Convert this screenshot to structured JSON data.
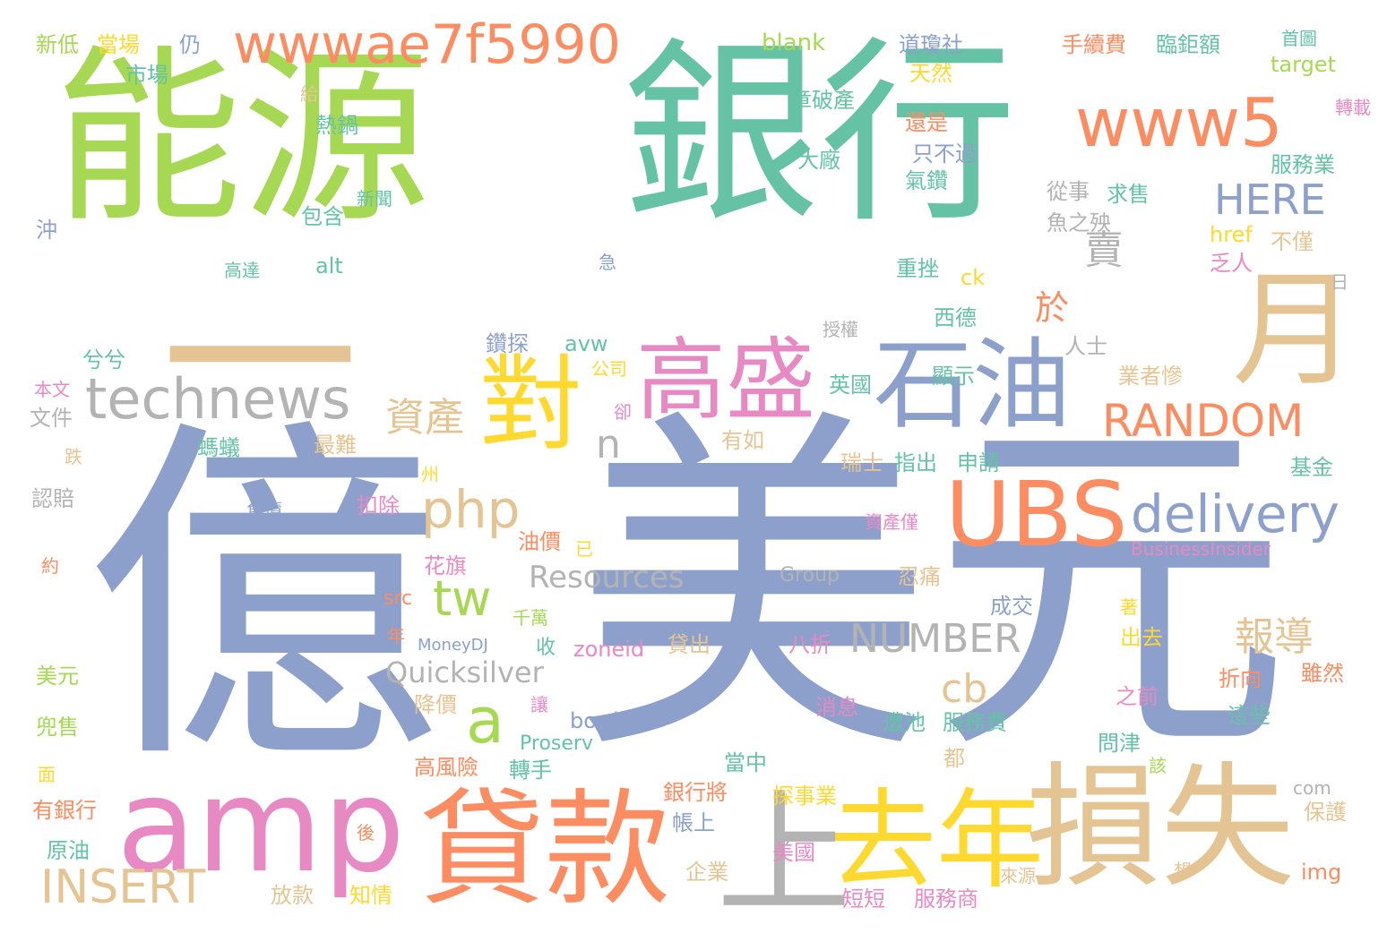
{
  "palette": [
    "#a6d854",
    "#66c2a5",
    "#8da0cb",
    "#fc8d62",
    "#e5c494",
    "#ffd92f",
    "#e78ac3",
    "#b3b3b3"
  ],
  "words": [
    {
      "text": "能源",
      "color": "#a6d854",
      "weight": 1.0
    },
    {
      "text": "銀行",
      "color": "#66c2a5",
      "weight": 1.0
    },
    {
      "text": "億",
      "color": "#8da0cb",
      "weight": 1.0
    },
    {
      "text": "美元",
      "color": "#8da0cb",
      "weight": 1.0
    },
    {
      "text": "一",
      "color": "#e5c494",
      "weight": 0.8
    },
    {
      "text": "月",
      "color": "#e5c494",
      "weight": 0.6
    },
    {
      "text": "石油",
      "color": "#8da0cb",
      "weight": 0.55
    },
    {
      "text": "損失",
      "color": "#e5c494",
      "weight": 0.6
    },
    {
      "text": "貸款",
      "color": "#fc8d62",
      "weight": 0.55
    },
    {
      "text": "去年",
      "color": "#ffd92f",
      "weight": 0.5
    },
    {
      "text": "上",
      "color": "#b3b3b3",
      "weight": 0.55
    },
    {
      "text": "amp",
      "color": "#e78ac3",
      "weight": 0.55
    },
    {
      "text": "對",
      "color": "#ffd92f",
      "weight": 0.5
    },
    {
      "text": "高盛",
      "color": "#e78ac3",
      "weight": 0.45
    },
    {
      "text": "UBS",
      "color": "#fc8d62",
      "weight": 0.45
    },
    {
      "text": "www5",
      "color": "#fc8d62",
      "weight": 0.38
    },
    {
      "text": "wwwae7f5990",
      "color": "#fc8d62",
      "weight": 0.3
    },
    {
      "text": "technews",
      "color": "#b3b3b3",
      "weight": 0.3
    },
    {
      "text": "delivery",
      "color": "#8da0cb",
      "weight": 0.3
    },
    {
      "text": "RANDOM",
      "color": "#fc8d62",
      "weight": 0.25
    },
    {
      "text": "INSERT",
      "color": "#e5c494",
      "weight": 0.25
    },
    {
      "text": "php",
      "color": "#e5c494",
      "weight": 0.25
    },
    {
      "text": "HERE",
      "color": "#8da0cb",
      "weight": 0.2
    },
    {
      "text": "NUMBER",
      "color": "#b3b3b3",
      "weight": 0.22
    },
    {
      "text": "tw",
      "color": "#a6d854",
      "weight": 0.25
    },
    {
      "text": "a",
      "color": "#a6d854",
      "weight": 0.3
    },
    {
      "text": "n",
      "color": "#b3b3b3",
      "weight": 0.2
    },
    {
      "text": "cb",
      "color": "#e5c494",
      "weight": 0.2
    },
    {
      "text": "資產",
      "color": "#e5c494",
      "weight": 0.22
    },
    {
      "text": "報導",
      "color": "#e5c494",
      "weight": 0.22
    },
    {
      "text": "賣",
      "color": "#b3b3b3",
      "weight": 0.2
    },
    {
      "text": "於",
      "color": "#fc8d62",
      "weight": 0.18
    },
    {
      "text": "Resources",
      "color": "#b3b3b3",
      "weight": 0.16
    },
    {
      "text": "Quicksilver",
      "color": "#b3b3b3",
      "weight": 0.15
    },
    {
      "text": "新低",
      "color": "#a6d854",
      "weight": 0.1
    },
    {
      "text": "當場",
      "color": "#ffd92f",
      "weight": 0.1
    },
    {
      "text": "仍",
      "color": "#8da0cb",
      "weight": 0.1
    },
    {
      "text": "市場",
      "color": "#66c2a5",
      "weight": 0.1
    },
    {
      "text": "blank",
      "color": "#a6d854",
      "weight": 0.1
    },
    {
      "text": "道瓊社",
      "color": "#8da0cb",
      "weight": 0.1
    },
    {
      "text": "手續費",
      "color": "#fc8d62",
      "weight": 0.1
    },
    {
      "text": "臨鉅額",
      "color": "#66c2a5",
      "weight": 0.1
    },
    {
      "text": "首圖",
      "color": "#66c2a5",
      "weight": 0.08
    },
    {
      "text": "target",
      "color": "#a6d854",
      "weight": 0.1
    },
    {
      "text": "天然",
      "color": "#ffd92f",
      "weight": 0.1
    },
    {
      "text": "給",
      "color": "#e5c494",
      "weight": 0.08
    },
    {
      "text": "章破產",
      "color": "#66c2a5",
      "weight": 0.1
    },
    {
      "text": "熱鍋",
      "color": "#66c2a5",
      "weight": 0.1
    },
    {
      "text": "還是",
      "color": "#fc8d62",
      "weight": 0.1
    },
    {
      "text": "轉載",
      "color": "#e78ac3",
      "weight": 0.08
    },
    {
      "text": "大廠",
      "color": "#66c2a5",
      "weight": 0.1
    },
    {
      "text": "只不過",
      "color": "#8da0cb",
      "weight": 0.1
    },
    {
      "text": "氣鑽",
      "color": "#66c2a5",
      "weight": 0.1
    },
    {
      "text": "服務業",
      "color": "#66c2a5",
      "weight": 0.1
    },
    {
      "text": "新聞",
      "color": "#66c2a5",
      "weight": 0.08
    },
    {
      "text": "從事",
      "color": "#b3b3b3",
      "weight": 0.1
    },
    {
      "text": "求售",
      "color": "#66c2a5",
      "weight": 0.1
    },
    {
      "text": "包含",
      "color": "#66c2a5",
      "weight": 0.1
    },
    {
      "text": "沖",
      "color": "#8da0cb",
      "weight": 0.1
    },
    {
      "text": "魚之殃",
      "color": "#b3b3b3",
      "weight": 0.1
    },
    {
      "text": "href",
      "color": "#ffd92f",
      "weight": 0.1
    },
    {
      "text": "不僅",
      "color": "#e5c494",
      "weight": 0.1
    },
    {
      "text": "高達",
      "color": "#66c2a5",
      "weight": 0.08
    },
    {
      "text": "alt",
      "color": "#66c2a5",
      "weight": 0.1
    },
    {
      "text": "急",
      "color": "#8da0cb",
      "weight": 0.08
    },
    {
      "text": "重挫",
      "color": "#66c2a5",
      "weight": 0.1
    },
    {
      "text": "乏人",
      "color": "#e78ac3",
      "weight": 0.1
    },
    {
      "text": "ck",
      "color": "#ffd92f",
      "weight": 0.1
    },
    {
      "text": "日",
      "color": "#b3b3b3",
      "weight": 0.08
    },
    {
      "text": "西德",
      "color": "#66c2a5",
      "weight": 0.1
    },
    {
      "text": "授權",
      "color": "#b3b3b3",
      "weight": 0.08
    },
    {
      "text": "兮兮",
      "color": "#66c2a5",
      "weight": 0.1
    },
    {
      "text": "鑽探",
      "color": "#8da0cb",
      "weight": 0.1
    },
    {
      "text": "avw",
      "color": "#66c2a5",
      "weight": 0.1
    },
    {
      "text": "人士",
      "color": "#b3b3b3",
      "weight": 0.1
    },
    {
      "text": "業者慘",
      "color": "#e5c494",
      "weight": 0.1
    },
    {
      "text": "公司",
      "color": "#ffd92f",
      "weight": 0.08
    },
    {
      "text": "顯示",
      "color": "#66c2a5",
      "weight": 0.1
    },
    {
      "text": "英國",
      "color": "#66c2a5",
      "weight": 0.1
    },
    {
      "text": "本文",
      "color": "#e78ac3",
      "weight": 0.08
    },
    {
      "text": "文件",
      "color": "#b3b3b3",
      "weight": 0.1
    },
    {
      "text": "卻",
      "color": "#e78ac3",
      "weight": 0.08
    },
    {
      "text": "螞蟻",
      "color": "#66c2a5",
      "weight": 0.1
    },
    {
      "text": "最難",
      "color": "#e5c494",
      "weight": 0.1
    },
    {
      "text": "有如",
      "color": "#e5c494",
      "weight": 0.1
    },
    {
      "text": "瑞士",
      "color": "#e5c494",
      "weight": 0.1
    },
    {
      "text": "指出",
      "color": "#66c2a5",
      "weight": 0.1
    },
    {
      "text": "申請",
      "color": "#66c2a5",
      "weight": 0.1
    },
    {
      "text": "基金",
      "color": "#66c2a5",
      "weight": 0.1
    },
    {
      "text": "跌",
      "color": "#e5c494",
      "weight": 0.08
    },
    {
      "text": "州",
      "color": "#ffd92f",
      "weight": 0.08
    },
    {
      "text": "認賠",
      "color": "#b3b3b3",
      "weight": 0.1
    },
    {
      "text": "負債",
      "color": "#8da0cb",
      "weight": 0.08
    },
    {
      "text": "扣除",
      "color": "#e78ac3",
      "weight": 0.1
    },
    {
      "text": "資產僅",
      "color": "#e78ac3",
      "weight": 0.08
    },
    {
      "text": "油價",
      "color": "#fc8d62",
      "weight": 0.1
    },
    {
      "text": "已",
      "color": "#ffd92f",
      "weight": 0.08
    },
    {
      "text": "BusinessInsider",
      "color": "#e78ac3",
      "weight": 0.08
    },
    {
      "text": "約",
      "color": "#fc8d62",
      "weight": 0.08
    },
    {
      "text": "花旗",
      "color": "#e78ac3",
      "weight": 0.1
    },
    {
      "text": "Group",
      "color": "#b3b3b3",
      "weight": 0.1
    },
    {
      "text": "忍痛",
      "color": "#e5c494",
      "weight": 0.1
    },
    {
      "text": "src",
      "color": "#fc8d62",
      "weight": 0.1
    },
    {
      "text": "千萬",
      "color": "#a6d854",
      "weight": 0.08
    },
    {
      "text": "成交",
      "color": "#8da0cb",
      "weight": 0.1
    },
    {
      "text": "著",
      "color": "#ffd92f",
      "weight": 0.08
    },
    {
      "text": "年",
      "color": "#fc8d62",
      "weight": 0.08
    },
    {
      "text": "MoneyDJ",
      "color": "#8da0cb",
      "weight": 0.08
    },
    {
      "text": "收",
      "color": "#66c2a5",
      "weight": 0.08
    },
    {
      "text": "zoneid",
      "color": "#e78ac3",
      "weight": 0.1
    },
    {
      "text": "貸出",
      "color": "#e5c494",
      "weight": 0.1
    },
    {
      "text": "八折",
      "color": "#e78ac3",
      "weight": 0.1
    },
    {
      "text": "出去",
      "color": "#ffd92f",
      "weight": 0.1
    },
    {
      "text": "美元",
      "color": "#a6d854",
      "weight": 0.1
    },
    {
      "text": "雖然",
      "color": "#fc8d62",
      "weight": 0.1
    },
    {
      "text": "折向",
      "color": "#fc8d62",
      "weight": 0.1
    },
    {
      "text": "降價",
      "color": "#e5c494",
      "weight": 0.1
    },
    {
      "text": "讓",
      "color": "#e78ac3",
      "weight": 0.08
    },
    {
      "text": "之前",
      "color": "#e78ac3",
      "weight": 0.1
    },
    {
      "text": "消息",
      "color": "#e78ac3",
      "weight": 0.1
    },
    {
      "text": "兜售",
      "color": "#a6d854",
      "weight": 0.1
    },
    {
      "text": "border",
      "color": "#8da0cb",
      "weight": 0.1
    },
    {
      "text": "遭池",
      "color": "#66c2a5",
      "weight": 0.1
    },
    {
      "text": "服務費",
      "color": "#66c2a5",
      "weight": 0.1
    },
    {
      "text": "這些",
      "color": "#66c2a5",
      "weight": 0.1
    },
    {
      "text": "Proserv",
      "color": "#66c2a5",
      "weight": 0.1
    },
    {
      "text": "問津",
      "color": "#66c2a5",
      "weight": 0.1
    },
    {
      "text": "面",
      "color": "#ffd92f",
      "weight": 0.08
    },
    {
      "text": "高風險",
      "color": "#fc8d62",
      "weight": 0.1
    },
    {
      "text": "轉手",
      "color": "#66c2a5",
      "weight": 0.1
    },
    {
      "text": "當中",
      "color": "#66c2a5",
      "weight": 0.1
    },
    {
      "text": "都",
      "color": "#e5c494",
      "weight": 0.08
    },
    {
      "text": "該",
      "color": "#a6d854",
      "weight": 0.08
    },
    {
      "text": "銀行將",
      "color": "#fc8d62",
      "weight": 0.1
    },
    {
      "text": "com",
      "color": "#b3b3b3",
      "weight": 0.08
    },
    {
      "text": "有銀行",
      "color": "#fc8d62",
      "weight": 0.1
    },
    {
      "text": "探事業",
      "color": "#ffd92f",
      "weight": 0.1
    },
    {
      "text": "帳上",
      "color": "#8da0cb",
      "weight": 0.1
    },
    {
      "text": "保護",
      "color": "#e5c494",
      "weight": 0.1
    },
    {
      "text": "後",
      "color": "#fc8d62",
      "weight": 0.08
    },
    {
      "text": "原油",
      "color": "#66c2a5",
      "weight": 0.1
    },
    {
      "text": "美國",
      "color": "#e78ac3",
      "weight": 0.1
    },
    {
      "text": "企業",
      "color": "#e5c494",
      "weight": 0.1
    },
    {
      "text": "想",
      "color": "#e5c494",
      "weight": 0.08
    },
    {
      "text": "img",
      "color": "#fc8d62",
      "weight": 0.1
    },
    {
      "text": "來源",
      "color": "#e5c494",
      "weight": 0.08
    },
    {
      "text": "放款",
      "color": "#e5c494",
      "weight": 0.1
    },
    {
      "text": "知情",
      "color": "#ffd92f",
      "weight": 0.1
    },
    {
      "text": "短短",
      "color": "#e78ac3",
      "weight": 0.1
    },
    {
      "text": "服務商",
      "color": "#e78ac3",
      "weight": 0.1
    }
  ]
}
